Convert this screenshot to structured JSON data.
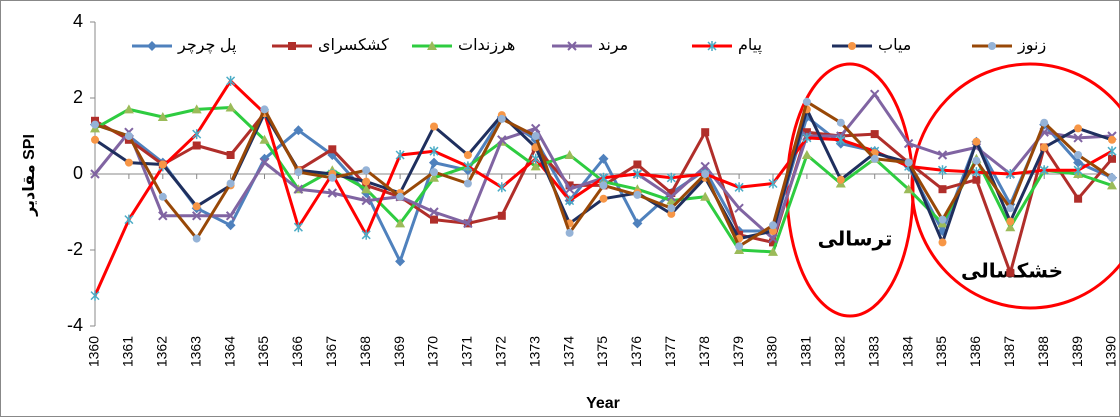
{
  "chart_data": {
    "type": "line",
    "y_label": "مقادیر SPI",
    "x_label": "Year",
    "categories": [
      "1360",
      "1361",
      "1362",
      "1363",
      "1364",
      "1365",
      "1366",
      "1367",
      "1368",
      "1369",
      "1370",
      "1371",
      "1372",
      "1373",
      "1374",
      "1375",
      "1376",
      "1377",
      "1378",
      "1379",
      "1380",
      "1381",
      "1382",
      "1383",
      "1384",
      "1385",
      "1386",
      "1387",
      "1388",
      "1389",
      "1390"
    ],
    "ylim": [
      -4,
      4
    ],
    "yticks": [
      -4,
      -2,
      0,
      2,
      4
    ],
    "grid": false,
    "legend": "top",
    "series": [
      {
        "name": "پل چرچر",
        "color": "#4f81bd",
        "marker": "diamond",
        "marker_color": "#4f81bd",
        "values": [
          1.3,
          1.0,
          0.3,
          -0.9,
          -1.35,
          0.4,
          1.15,
          0.5,
          -0.5,
          -2.3,
          0.3,
          0.1,
          1.5,
          0.9,
          -0.7,
          0.4,
          -1.3,
          -0.5,
          0.1,
          -1.5,
          -1.5,
          1.5,
          0.8,
          0.6,
          0.2,
          -1.5,
          0.85,
          -0.8,
          1.3,
          0.3,
          -0.1
        ]
      },
      {
        "name": "کشکسرای",
        "color": "#b02e2a",
        "marker": "square",
        "marker_color": "#b02e2a",
        "values": [
          1.4,
          0.9,
          0.25,
          0.75,
          0.5,
          1.6,
          0.1,
          0.65,
          -0.3,
          -0.6,
          -1.2,
          -1.3,
          -1.1,
          0.7,
          -0.3,
          -0.3,
          0.25,
          -0.5,
          1.1,
          -1.6,
          -1.8,
          1.1,
          1.0,
          1.05,
          0.3,
          -0.4,
          -0.15,
          -2.6,
          0.7,
          -0.65,
          0.4
        ]
      },
      {
        "name": "هرزندات",
        "color": "#2ecc40",
        "marker": "triangle",
        "marker_color": "#9bbb59",
        "values": [
          1.2,
          1.7,
          1.5,
          1.7,
          1.75,
          0.9,
          -0.4,
          0.1,
          -0.4,
          -1.3,
          -0.1,
          0.2,
          0.85,
          0.2,
          0.5,
          -0.2,
          -0.4,
          -0.7,
          -0.6,
          -2.0,
          -2.05,
          0.5,
          -0.25,
          0.4,
          -0.4,
          -1.3,
          0.4,
          -1.4,
          0.1,
          0.0,
          -0.3
        ]
      },
      {
        "name": "مرند",
        "color": "#8064a2",
        "marker": "x",
        "marker_color": "#8064a2",
        "values": [
          0.0,
          1.1,
          -1.1,
          -1.1,
          -1.1,
          0.3,
          -0.4,
          -0.5,
          -0.7,
          -0.6,
          -1.0,
          -1.3,
          0.9,
          1.2,
          -0.4,
          -0.1,
          0.0,
          -0.6,
          0.2,
          -0.9,
          -1.7,
          1.0,
          1.0,
          2.1,
          0.8,
          0.5,
          0.7,
          0.0,
          1.1,
          0.95,
          1.0
        ]
      },
      {
        "name": "پیام",
        "color": "#ff0000",
        "marker": "star",
        "marker_color": "#4bacc6",
        "values": [
          -3.2,
          -1.2,
          0.2,
          1.05,
          2.45,
          1.6,
          -1.4,
          0.0,
          -1.6,
          0.5,
          0.6,
          0.2,
          -0.35,
          0.4,
          -0.7,
          -0.1,
          0.0,
          -0.1,
          0.0,
          -0.35,
          -0.25,
          0.95,
          0.9,
          0.6,
          0.2,
          0.1,
          0.05,
          0.0,
          0.1,
          0.1,
          0.6
        ]
      },
      {
        "name": "میاب",
        "color": "#1f2f5e",
        "marker": "circle",
        "marker_color": "#f79646",
        "values": [
          0.9,
          0.3,
          0.25,
          -0.85,
          -0.3,
          1.6,
          0.1,
          0.0,
          -0.2,
          -0.5,
          1.25,
          0.5,
          1.55,
          0.7,
          -1.3,
          -0.65,
          -0.5,
          -1.05,
          -0.1,
          -1.7,
          -1.5,
          1.7,
          -0.15,
          0.55,
          0.3,
          -1.8,
          0.85,
          -1.25,
          0.7,
          1.2,
          0.9
        ]
      },
      {
        "name": "زنوز",
        "color": "#984807",
        "marker": "circle",
        "marker_color": "#95b3d7",
        "values": [
          1.3,
          1.0,
          -0.6,
          -1.7,
          -0.25,
          1.7,
          0.05,
          -0.1,
          0.1,
          -0.6,
          0.05,
          -0.25,
          1.45,
          1.0,
          -1.55,
          -0.3,
          -0.55,
          -0.9,
          0.0,
          -1.9,
          -1.35,
          1.9,
          1.35,
          0.4,
          0.3,
          -1.2,
          0.35,
          -0.9,
          1.35,
          0.5,
          -0.1
        ]
      }
    ],
    "annotations": [
      "ترسالی",
      "خشکسالی"
    ]
  }
}
